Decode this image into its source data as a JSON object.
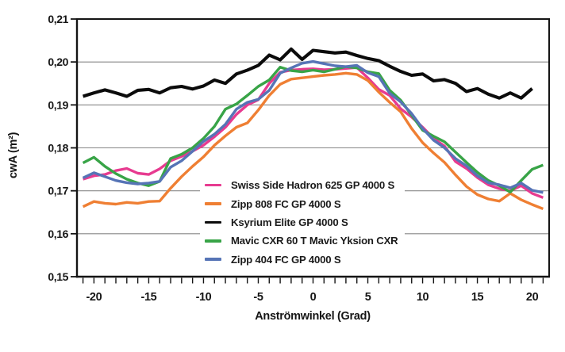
{
  "axes": {
    "y_label": "cwA (m²)",
    "x_label": "Anströmwinkel (Grad)",
    "y_ticks": [
      "0,21",
      "0,20",
      "0,19",
      "0,18",
      "0,17",
      "0,16",
      "0,15"
    ],
    "x_tick_labels": [
      "-20",
      "-15",
      "-10",
      "-5",
      "0",
      "5",
      "10",
      "15",
      "20"
    ]
  },
  "chart_data": {
    "type": "line",
    "title": "",
    "xlabel": "Anströmwinkel (Grad)",
    "ylabel": "cwA (m²)",
    "xlim": [
      -21.55,
      21.55
    ],
    "ylim": [
      0.15,
      0.21
    ],
    "y_tick_values": [
      0.21,
      0.2,
      0.19,
      0.18,
      0.17,
      0.16,
      0.15
    ],
    "x_major_ticks": [
      -20,
      -15,
      -10,
      -5,
      0,
      5,
      10,
      15,
      20
    ],
    "x_minor_tick_step": 1,
    "grid": "horizontal",
    "legend_position": "inside-lower-left",
    "x": [
      -21,
      -20,
      -19,
      -18,
      -17,
      -16,
      -15,
      -14,
      -13,
      -12,
      -11,
      -10,
      -9,
      -8,
      -7,
      -6,
      -5,
      -4,
      -3,
      -2,
      -1,
      0,
      1,
      2,
      3,
      4,
      5,
      6,
      7,
      8,
      9,
      10,
      11,
      12,
      13,
      14,
      15,
      16,
      17,
      18,
      19,
      20,
      21
    ],
    "series": [
      {
        "id": "swiss-side-hadron",
        "name": "Swiss Side Hadron 625 GP 4000 S",
        "color": "#e73b90",
        "values": [
          0.1727,
          0.1735,
          0.1738,
          0.1747,
          0.1752,
          0.1741,
          0.1738,
          0.1751,
          0.177,
          0.178,
          0.1792,
          0.1806,
          0.1826,
          0.1848,
          0.1878,
          0.19,
          0.1912,
          0.195,
          0.1976,
          0.1981,
          0.1983,
          0.1984,
          0.1982,
          0.1983,
          0.1985,
          0.1987,
          0.1963,
          0.1936,
          0.1922,
          0.1891,
          0.1872,
          0.1848,
          0.1822,
          0.1804,
          0.1768,
          0.1752,
          0.1731,
          0.1714,
          0.1705,
          0.17,
          0.1712,
          0.1694,
          0.1684
        ]
      },
      {
        "id": "zipp-808",
        "name": "Zipp 808 FC GP 4000 S",
        "color": "#ef7f33",
        "values": [
          0.1663,
          0.1675,
          0.1671,
          0.1669,
          0.1673,
          0.1671,
          0.1675,
          0.1676,
          0.1706,
          0.1733,
          0.1757,
          0.1779,
          0.1806,
          0.1828,
          0.1848,
          0.1858,
          0.1888,
          0.1922,
          0.1948,
          0.196,
          0.1963,
          0.1966,
          0.1969,
          0.1971,
          0.1974,
          0.1971,
          0.1957,
          0.193,
          0.1906,
          0.1884,
          0.1845,
          0.1812,
          0.1788,
          0.1766,
          0.1737,
          0.171,
          0.1691,
          0.1681,
          0.1676,
          0.1694,
          0.1679,
          0.1668,
          0.1658
        ]
      },
      {
        "id": "ksyrium-elite",
        "name": "Ksyrium Elite GP 4000 S",
        "color": "#0b0b0b",
        "values": [
          0.192,
          0.1928,
          0.1935,
          0.1928,
          0.192,
          0.1934,
          0.1936,
          0.1928,
          0.194,
          0.1943,
          0.1937,
          0.1944,
          0.1958,
          0.195,
          0.1972,
          0.1981,
          0.1992,
          0.2016,
          0.2005,
          0.203,
          0.2006,
          0.2027,
          0.2024,
          0.2021,
          0.2023,
          0.2015,
          0.2008,
          0.2003,
          0.199,
          0.1978,
          0.1969,
          0.1972,
          0.1956,
          0.1959,
          0.195,
          0.1931,
          0.1938,
          0.1925,
          0.1916,
          0.1928,
          0.1916,
          0.1938,
          null
        ]
      },
      {
        "id": "mavic-cxr-60",
        "name": "Mavic CXR 60 T Mavic Yksion CXR",
        "color": "#38a447",
        "values": [
          0.1765,
          0.1778,
          0.1757,
          0.174,
          0.1727,
          0.1718,
          0.1712,
          0.1722,
          0.1775,
          0.1785,
          0.18,
          0.1822,
          0.185,
          0.189,
          0.1902,
          0.1922,
          0.1943,
          0.1958,
          0.1988,
          0.198,
          0.1977,
          0.1981,
          0.1977,
          0.1983,
          0.1989,
          0.1986,
          0.1977,
          0.1973,
          0.1934,
          0.1911,
          0.1876,
          0.1841,
          0.1827,
          0.1814,
          0.179,
          0.1766,
          0.1743,
          0.1724,
          0.1712,
          0.1697,
          0.1724,
          0.175,
          0.176
        ]
      },
      {
        "id": "zipp-404",
        "name": "Zipp 404 FC GP 4000 S",
        "color": "#5674b6",
        "values": [
          0.173,
          0.1742,
          0.1733,
          0.1724,
          0.1719,
          0.1716,
          0.1718,
          0.1722,
          0.1755,
          0.177,
          0.1792,
          0.1815,
          0.1832,
          0.1855,
          0.189,
          0.1906,
          0.1913,
          0.1934,
          0.1974,
          0.1986,
          0.1997,
          0.2001,
          0.1996,
          0.1991,
          0.1989,
          0.1992,
          0.1975,
          0.1966,
          0.1927,
          0.1907,
          0.188,
          0.1845,
          0.1818,
          0.18,
          0.1775,
          0.1758,
          0.1735,
          0.1719,
          0.1714,
          0.1707,
          0.1718,
          0.1701,
          0.1696
        ]
      }
    ]
  }
}
